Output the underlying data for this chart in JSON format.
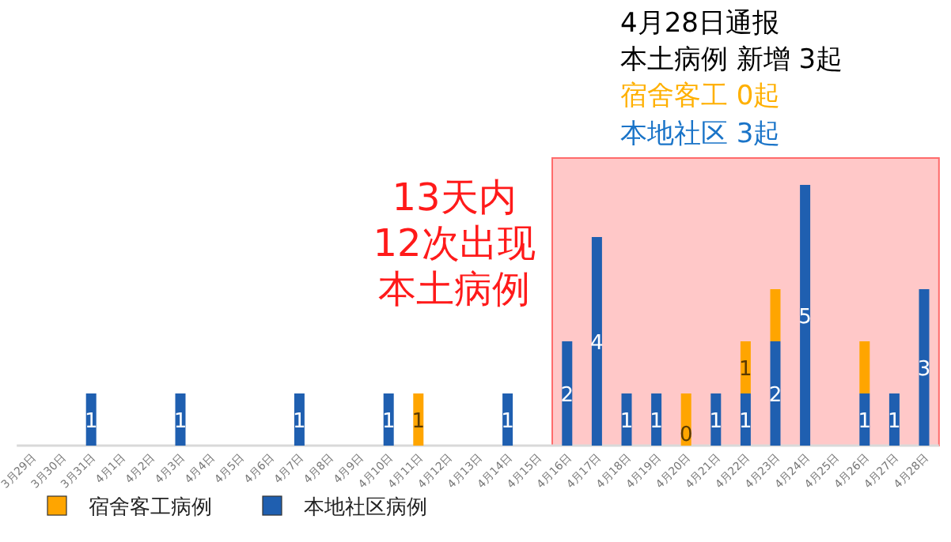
{
  "chart_data": {
    "type": "bar",
    "stacked": true,
    "legend": "bottom",
    "categories": [
      "3月29日",
      "3月30日",
      "3月31日",
      "4月1日",
      "4月2日",
      "4月3日",
      "4月4日",
      "4月5日",
      "4月6日",
      "4月7日",
      "4月8日",
      "4月9日",
      "4月10日",
      "4月11日",
      "4月12日",
      "4月13日",
      "4月14日",
      "4月15日",
      "4月16日",
      "4月17日",
      "4月18日",
      "4月19日",
      "4月20日",
      "4月21日",
      "4月22日",
      "4月23日",
      "4月24日",
      "4月25日",
      "4月26日",
      "4月27日",
      "4月28日"
    ],
    "series": [
      {
        "name": "本地社区病例",
        "color": "#1f5fb0",
        "values": [
          0,
          0,
          1,
          0,
          0,
          1,
          0,
          0,
          0,
          1,
          0,
          0,
          1,
          0,
          0,
          0,
          1,
          0,
          2,
          4,
          1,
          1,
          0,
          1,
          1,
          2,
          5,
          0,
          1,
          1,
          3
        ],
        "value_labels": [
          null,
          null,
          "1",
          null,
          null,
          "1",
          null,
          null,
          null,
          "1",
          null,
          null,
          "1",
          null,
          null,
          null,
          "1",
          null,
          "2",
          "4",
          "1",
          "1",
          "0",
          "1",
          "1",
          "2",
          "5",
          null,
          "1",
          "1",
          "3"
        ]
      },
      {
        "name": "宿舍客工病例",
        "color": "#ffa500",
        "values": [
          0,
          0,
          0,
          0,
          0,
          0,
          0,
          0,
          0,
          0,
          0,
          0,
          0,
          1,
          0,
          0,
          0,
          0,
          0,
          0,
          0,
          0,
          1,
          0,
          1,
          1,
          0,
          0,
          1,
          0,
          0
        ],
        "value_labels": [
          null,
          null,
          null,
          null,
          null,
          null,
          null,
          null,
          null,
          null,
          null,
          null,
          null,
          "1",
          null,
          null,
          null,
          null,
          null,
          null,
          null,
          null,
          null,
          null,
          "1",
          null,
          null,
          null,
          null,
          null,
          null
        ]
      }
    ],
    "bands": [
      {
        "axis": "x",
        "from": "4月16日",
        "to": "4月28日",
        "color": "#ffc8c8"
      }
    ],
    "annotations": [
      "4月28日通报",
      "本土病例 新增 3起",
      "宿舍客工 0起",
      "本地社区 3起",
      "13天内",
      "12次出现",
      "本土病例"
    ]
  }
}
